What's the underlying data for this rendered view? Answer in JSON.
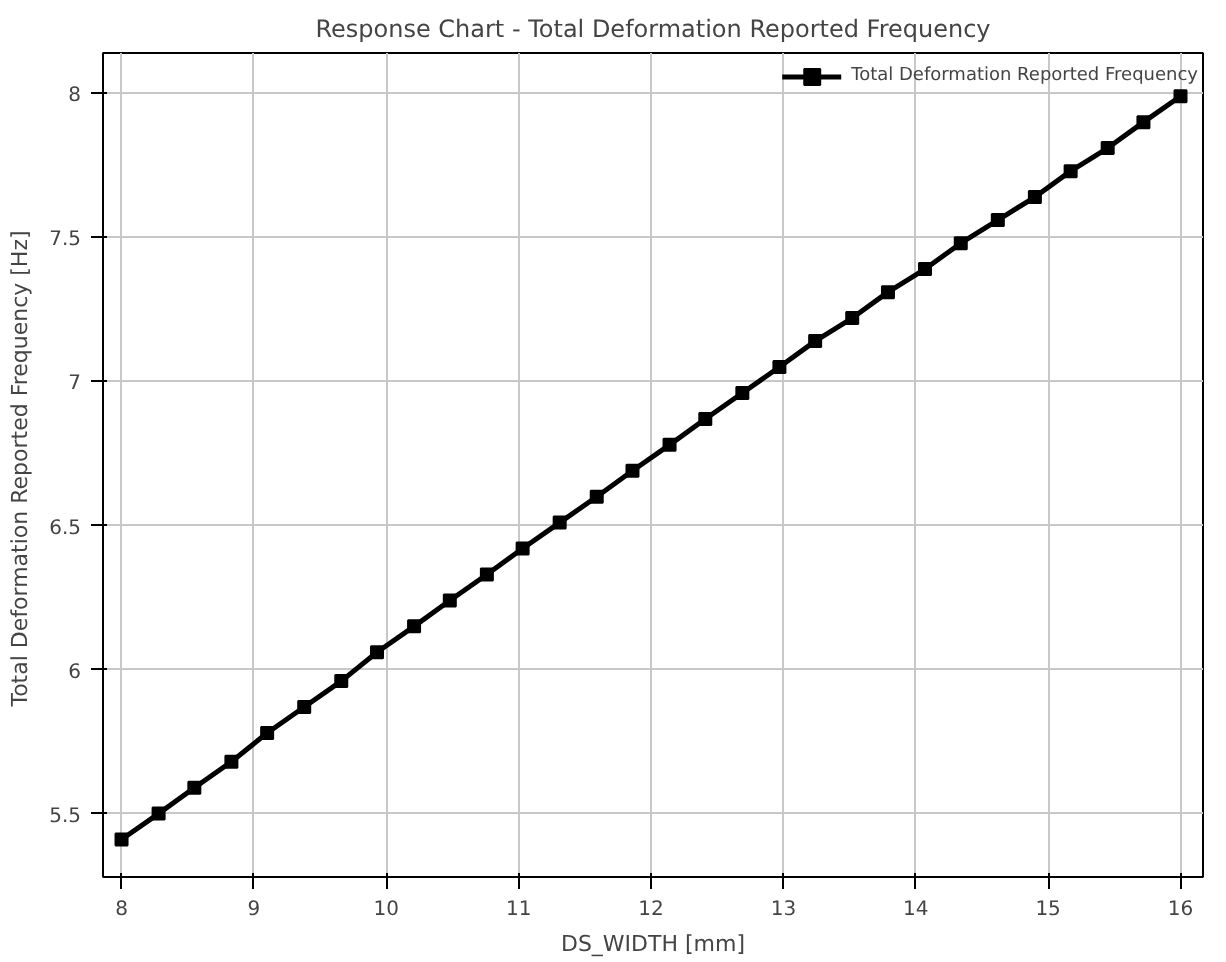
{
  "chart_data": {
    "type": "line",
    "title": "Response Chart - Total Deformation Reported Frequency",
    "xlabel": "DS_WIDTH [mm]",
    "ylabel": "Total Deformation Reported Frequency  [Hz]",
    "x": [
      8,
      8.28,
      8.55,
      8.83,
      9.1,
      9.38,
      9.66,
      9.93,
      10.21,
      10.48,
      10.76,
      11.03,
      11.31,
      11.59,
      11.86,
      12.14,
      12.41,
      12.69,
      12.97,
      13.24,
      13.52,
      13.79,
      14.07,
      14.34,
      14.62,
      14.9,
      15.17,
      15.45,
      15.72,
      16
    ],
    "series": [
      {
        "name": "Total Deformation Reported Frequency",
        "color": "#000000",
        "values": [
          5.41,
          5.5,
          5.59,
          5.68,
          5.78,
          5.87,
          5.96,
          6.06,
          6.15,
          6.24,
          6.33,
          6.42,
          6.51,
          6.6,
          6.69,
          6.78,
          6.87,
          6.96,
          7.05,
          7.14,
          7.22,
          7.31,
          7.39,
          7.48,
          7.56,
          7.64,
          7.73,
          7.81,
          7.9,
          7.99
        ]
      }
    ],
    "xlim": [
      7.86,
      16.17
    ],
    "ylim": [
      5.28,
      8.14
    ],
    "xticks": [
      8,
      9,
      10,
      11,
      12,
      13,
      14,
      15,
      16
    ],
    "yticks": [
      5.5,
      6,
      6.5,
      7,
      7.5,
      8
    ],
    "grid": true,
    "legend": "top right",
    "marker": "square",
    "line_style": "solid"
  }
}
